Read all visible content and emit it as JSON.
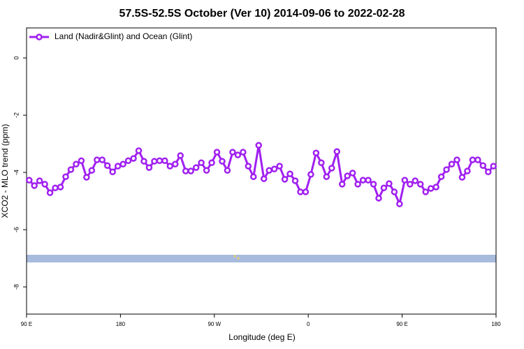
{
  "chart_data": {
    "type": "line",
    "title": "57.5S-52.5S October (Ver 10)   2014-09-06 to 2022-02-28",
    "x_label": "Longitude (deg E)",
    "y_label": "XCO2 - MLO trend (ppm)",
    "xlim": [
      90,
      540
    ],
    "xticks": [
      {
        "value": 90,
        "label": "90 E"
      },
      {
        "value": 180,
        "label": "180"
      },
      {
        "value": 270,
        "label": "90 W"
      },
      {
        "value": 360,
        "label": "0"
      },
      {
        "value": 450,
        "label": "90 E"
      },
      {
        "value": 540,
        "label": "180"
      }
    ],
    "ylim": [
      -8.95,
      1.05
    ],
    "yticks": [
      0,
      -2,
      -4,
      -6,
      -8
    ],
    "legend_position": "top-left",
    "x": [
      92.5,
      97.5,
      102.5,
      107.5,
      112.5,
      117.5,
      122.5,
      127.5,
      132.5,
      137.5,
      142.5,
      147.5,
      152.5,
      157.5,
      162.5,
      167.5,
      172.5,
      177.5,
      182.5,
      187.5,
      192.5,
      197.5,
      202.5,
      207.5,
      212.5,
      217.5,
      222.5,
      227.5,
      232.5,
      237.5,
      242.5,
      247.5,
      252.5,
      257.5,
      262.5,
      267.5,
      272.5,
      277.5,
      282.5,
      287.5,
      292.5,
      297.5,
      302.5,
      307.5,
      312.5,
      317.5,
      322.5,
      327.5,
      332.5,
      337.5,
      342.5,
      347.5,
      352.5,
      357.5,
      362.5,
      367.5,
      372.5,
      377.5,
      382.5,
      387.5,
      392.5,
      397.5,
      402.5,
      407.5,
      412.5,
      417.5,
      422.5,
      427.5,
      432.5,
      437.5,
      442.5,
      447.5,
      452.5,
      457.5,
      462.5,
      467.5,
      472.5,
      477.5,
      482.5,
      487.5,
      492.5,
      497.5,
      502.5,
      507.5,
      512.5,
      517.5,
      522.5,
      527.5,
      532.5,
      537.5
    ],
    "series": [
      {
        "name": "Land (Nadir&Glint) and Ocean (Glint)",
        "color": "#a020f0",
        "values": [
          -4.27,
          -4.46,
          -4.29,
          -4.41,
          -4.71,
          -4.54,
          -4.51,
          -4.15,
          -3.9,
          -3.71,
          -3.59,
          -4.17,
          -3.93,
          -3.56,
          -3.56,
          -3.76,
          -3.98,
          -3.78,
          -3.71,
          -3.59,
          -3.51,
          -3.24,
          -3.61,
          -3.83,
          -3.61,
          -3.59,
          -3.59,
          -3.78,
          -3.71,
          -3.41,
          -3.95,
          -3.95,
          -3.83,
          -3.66,
          -3.93,
          -3.66,
          -3.29,
          -3.61,
          -3.93,
          -3.29,
          -3.39,
          -3.29,
          -3.78,
          -4.15,
          -3.05,
          -4.22,
          -3.93,
          -3.88,
          -3.78,
          -4.24,
          -4.05,
          -4.29,
          -4.68,
          -4.68,
          -4.07,
          -3.32,
          -3.66,
          -4.15,
          -3.85,
          -3.27,
          -4.41,
          -4.12,
          -4.02,
          -4.41,
          -4.27,
          -4.27,
          -4.41,
          -4.9,
          -4.54,
          -4.39,
          -4.68,
          -5.1,
          -4.27,
          -4.41,
          -4.29,
          -4.41,
          -4.68,
          -4.56,
          -4.51,
          -4.15,
          -3.9,
          -3.71,
          -3.56,
          -4.17,
          -3.95,
          -3.56,
          -3.56,
          -3.76,
          -3.98,
          -3.78
        ]
      }
    ]
  }
}
